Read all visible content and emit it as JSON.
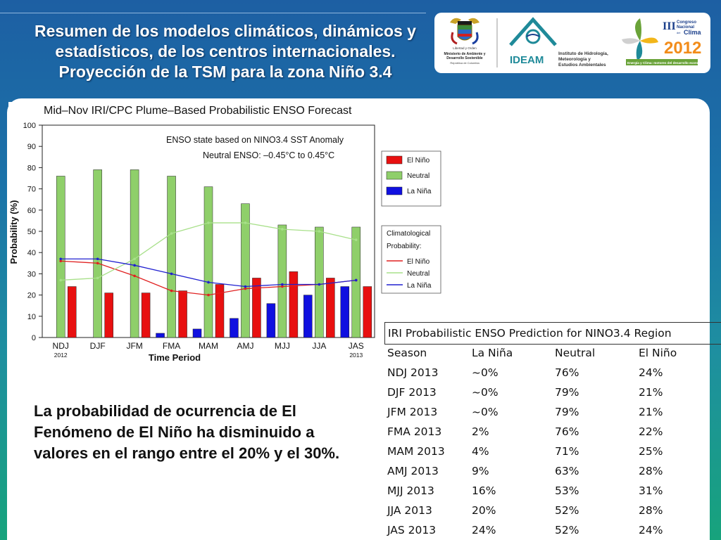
{
  "slide": {
    "title": "Resumen de los modelos climáticos, dinámicos y estadísticos, de los centros internacionales. Proyección de la TSM para la zona Niño 3.4",
    "body_text": "La probabilidad de ocurrencia de El Fenómeno de El Niño ha disminuido a valores en el rango entre el 20% y el 30%."
  },
  "logos": {
    "ministry": {
      "line1": "Libertad y Orden",
      "line2": "Ministerio de Ambiente y",
      "line3": "Desarrollo Sostenible",
      "line4": "República de Colombia"
    },
    "ideam": {
      "name": "IDEAM",
      "line1": "Instituto de Hidrología,",
      "line2": "Meteorología y",
      "line3": "Estudios Ambientales"
    },
    "congress": {
      "roman": "III",
      "line1": "Congreso",
      "line2": "Nacional",
      "line3": "Clima",
      "prefix": "del",
      "year": "2012",
      "footer": "Energía y Clima: motores del desarrollo económico"
    },
    "colors": {
      "ideam_teal": "#1f8a99",
      "ideam_blue": "#1b3f8b",
      "congress_orange": "#f28c1a",
      "congress_green": "#6aa339"
    }
  },
  "chart_data": {
    "type": "bar",
    "title": "Mid–Nov IRI/CPC Plume–Based Probabilistic ENSO Forecast",
    "xlabel": "Time Period",
    "ylabel": "Probability (%)",
    "ylim": [
      0,
      100
    ],
    "yticks": [
      0,
      10,
      20,
      30,
      40,
      50,
      60,
      70,
      80,
      90,
      100
    ],
    "categories": [
      "NDJ",
      "DJF",
      "JFM",
      "FMA",
      "MAM",
      "AMJ",
      "MJJ",
      "JJA",
      "JAS"
    ],
    "year_labels": {
      "first": "2012",
      "last": "2013"
    },
    "annotation": {
      "line1": "ENSO state based on NINO3.4 SST Anomaly",
      "line2": "Neutral ENSO: –0.45°C to 0.45°C"
    },
    "legend_title": "",
    "series": [
      {
        "name": "La Niña",
        "color": "#1010e0",
        "values": [
          0,
          0,
          0,
          2,
          4,
          9,
          16,
          20,
          24
        ]
      },
      {
        "name": "Neutral",
        "color": "#8fcf6a",
        "values": [
          76,
          79,
          79,
          76,
          71,
          63,
          53,
          52,
          52
        ]
      },
      {
        "name": "El Niño",
        "color": "#e81010",
        "values": [
          24,
          21,
          21,
          22,
          25,
          28,
          31,
          28,
          24
        ]
      }
    ],
    "legend_order": [
      "El Niño",
      "Neutral",
      "La Niña"
    ],
    "climatology": {
      "label": "Climatological Probability:",
      "series": [
        {
          "name": "El Niño",
          "color": "#e02020",
          "values": [
            36,
            35,
            29,
            22,
            20,
            23,
            24,
            25,
            27
          ]
        },
        {
          "name": "Neutral",
          "color": "#a8e08a",
          "values": [
            27,
            28,
            37,
            49,
            54,
            54,
            51,
            50,
            46
          ]
        },
        {
          "name": "La Niña",
          "color": "#2020d0",
          "values": [
            37,
            37,
            34,
            30,
            26,
            24,
            25,
            25,
            27
          ]
        }
      ]
    },
    "grid": false
  },
  "table": {
    "caption": "IRI Probabilistic ENSO Prediction for NINO3.4 Region",
    "headers": [
      "Season",
      "La Niña",
      "Neutral",
      "El Niño"
    ],
    "rows": [
      [
        "NDJ 2013",
        "~0%",
        "76%",
        "24%"
      ],
      [
        "DJF 2013",
        "~0%",
        "79%",
        "21%"
      ],
      [
        "JFM 2013",
        "~0%",
        "79%",
        "21%"
      ],
      [
        "FMA 2013",
        "2%",
        "76%",
        "22%"
      ],
      [
        "MAM 2013",
        "4%",
        "71%",
        "25%"
      ],
      [
        "AMJ 2013",
        "9%",
        "63%",
        "28%"
      ],
      [
        "MJJ 2013",
        "16%",
        "53%",
        "31%"
      ],
      [
        "JJA 2013",
        "20%",
        "52%",
        "28%"
      ],
      [
        "JAS 2013",
        "24%",
        "52%",
        "24%"
      ]
    ]
  }
}
